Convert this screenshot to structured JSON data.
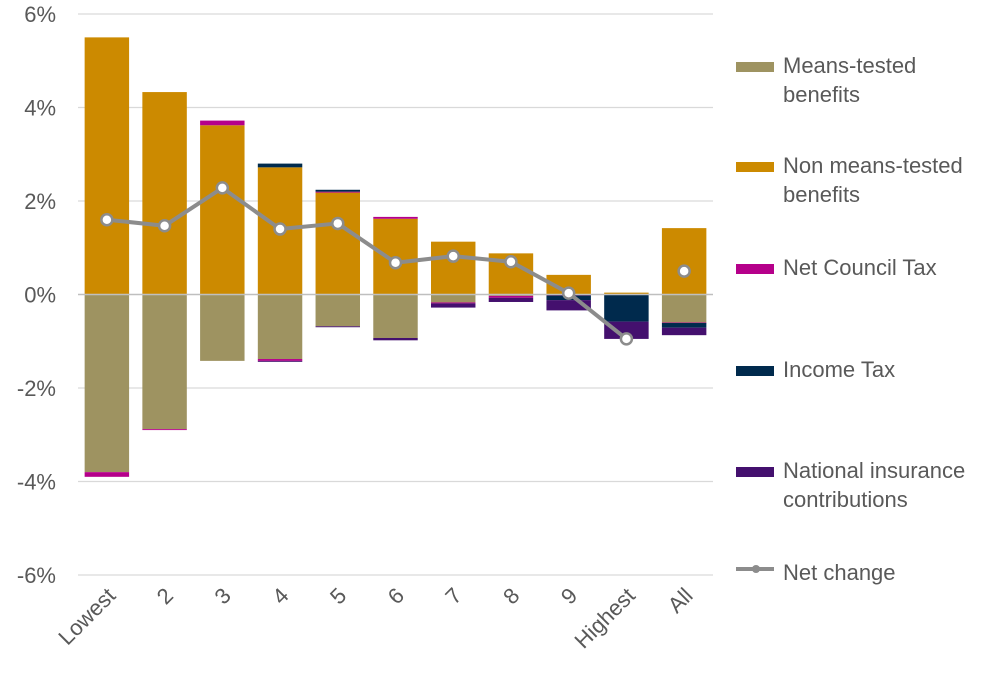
{
  "chart_data": {
    "type": "bar",
    "stacked": true,
    "categories": [
      "Lowest",
      "2",
      "3",
      "4",
      "5",
      "6",
      "7",
      "8",
      "9",
      "Highest",
      "All"
    ],
    "y_tick_labels": [
      "6%",
      "4%",
      "2%",
      "0%",
      "-2%",
      "-4%",
      "-6%"
    ],
    "y_ticks": [
      6,
      4,
      2,
      0,
      -2,
      -4,
      -6
    ],
    "ylim": [
      -6,
      6
    ],
    "grid": true,
    "legend_position": "right",
    "series": [
      {
        "name": "Means-tested\nbenefits",
        "color": "#9e9361",
        "values": [
          -3.8,
          -2.88,
          -1.42,
          -1.38,
          -0.68,
          -0.93,
          -0.17,
          -0.03,
          0,
          0,
          -0.6
        ]
      },
      {
        "name": "Non means-tested\nbenefits",
        "color": "#cc8a00",
        "values": [
          5.5,
          4.33,
          3.62,
          2.72,
          2.18,
          1.62,
          1.13,
          0.88,
          0.42,
          0.04,
          1.42
        ]
      },
      {
        "name": "Net Council Tax",
        "color": "#b5008a",
        "values": [
          -0.1,
          -0.02,
          0.1,
          -0.04,
          0.02,
          0.04,
          -0.02,
          -0.04,
          -0.02,
          0,
          -0.01
        ]
      },
      {
        "name": "Income Tax",
        "color": "#002a4d",
        "values": [
          0,
          0,
          0,
          0.08,
          0.04,
          0,
          0,
          0,
          -0.1,
          -0.58,
          -0.1
        ]
      },
      {
        "name": "National insurance\ncontributions",
        "color": "#44106e",
        "values": [
          0,
          0,
          0,
          -0.02,
          -0.02,
          -0.05,
          -0.09,
          -0.09,
          -0.22,
          -0.37,
          -0.16
        ]
      }
    ],
    "line": {
      "name": "Net change",
      "color": "#8c8c8c",
      "values": [
        1.6,
        1.47,
        2.28,
        1.4,
        1.52,
        0.68,
        0.82,
        0.7,
        0.03,
        -0.95,
        0.5
      ]
    }
  }
}
